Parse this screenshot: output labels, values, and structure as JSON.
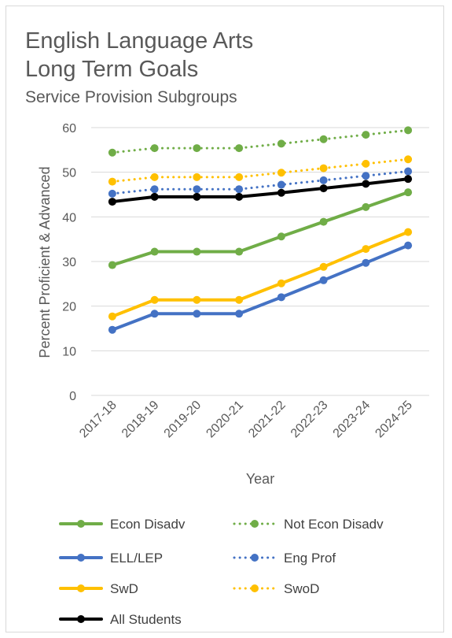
{
  "chart_data": {
    "type": "line",
    "title_line1": "English Language Arts",
    "title_line2": "Long Term Goals",
    "subtitle": "Service Provision Subgroups",
    "xlabel": "Year",
    "ylabel": "Percent Proficient & Advanced",
    "ylim": [
      0,
      60
    ],
    "yticks": [
      0,
      10,
      20,
      30,
      40,
      50,
      60
    ],
    "grid": true,
    "legend_position": "bottom",
    "categories": [
      "2017-18",
      "2018-19",
      "2019-20",
      "2020-21",
      "2021-22",
      "2022-23",
      "2023-24",
      "2024-25"
    ],
    "series": [
      {
        "name": "Econ Disadv",
        "color": "#70ad47",
        "style": "solid",
        "values": [
          29.2,
          32.2,
          32.2,
          32.2,
          35.6,
          38.9,
          42.2,
          45.5
        ]
      },
      {
        "name": "Not Econ Disadv",
        "color": "#70ad47",
        "style": "dotted",
        "values": [
          54.4,
          55.4,
          55.4,
          55.4,
          56.4,
          57.4,
          58.4,
          59.4
        ]
      },
      {
        "name": "ELL/LEP",
        "color": "#4472c4",
        "style": "solid",
        "values": [
          14.7,
          18.3,
          18.3,
          18.3,
          22.0,
          25.8,
          29.7,
          33.6
        ]
      },
      {
        "name": "Eng Prof",
        "color": "#4472c4",
        "style": "dotted",
        "values": [
          45.2,
          46.2,
          46.2,
          46.2,
          47.2,
          48.2,
          49.2,
          50.2
        ]
      },
      {
        "name": "SwD",
        "color": "#ffc000",
        "style": "solid",
        "values": [
          17.7,
          21.4,
          21.4,
          21.4,
          25.1,
          28.8,
          32.8,
          36.6
        ]
      },
      {
        "name": "SwoD",
        "color": "#ffc000",
        "style": "dotted",
        "values": [
          47.9,
          48.9,
          48.9,
          48.9,
          49.9,
          50.9,
          51.9,
          52.9
        ]
      },
      {
        "name": "All Students",
        "color": "#000000",
        "style": "solid",
        "values": [
          43.4,
          44.5,
          44.5,
          44.5,
          45.4,
          46.4,
          47.4,
          48.5
        ]
      }
    ]
  }
}
